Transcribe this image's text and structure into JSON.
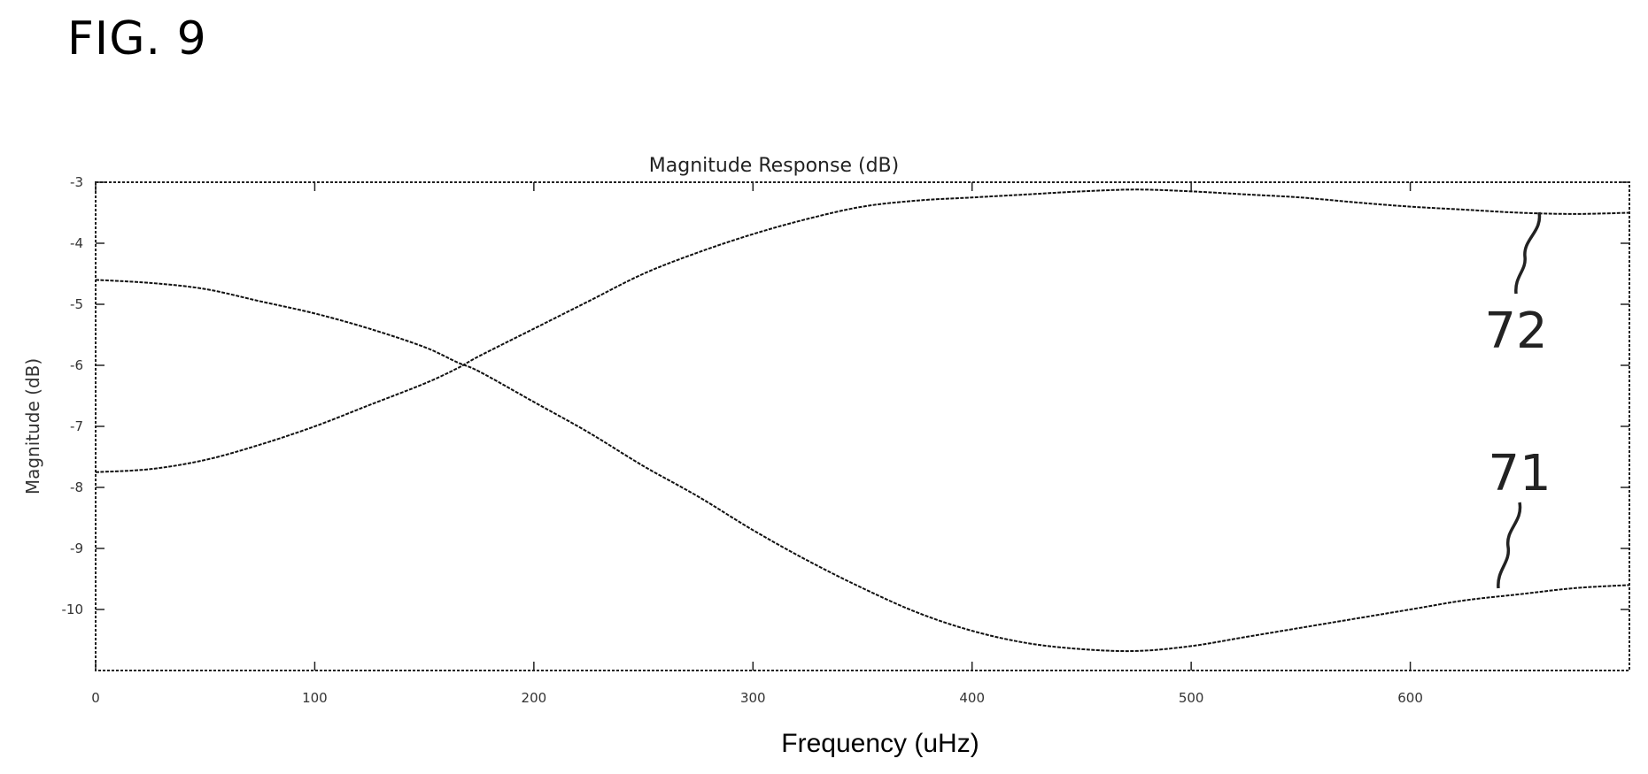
{
  "figure_label": "FIG. 9",
  "chart_data": {
    "type": "line",
    "title": "Magnitude Response (dB)",
    "xlabel": "Frequency (uHz)",
    "ylabel": "Magnitude (dB)",
    "xlim": [
      0,
      700
    ],
    "ylim": [
      -11,
      -3
    ],
    "xticks": [
      0,
      100,
      200,
      300,
      400,
      500,
      600
    ],
    "xtick_labels": [
      "0",
      "100",
      "200",
      "300",
      "400",
      "500",
      "600"
    ],
    "yticks": [
      -3,
      -4,
      -5,
      -6,
      -7,
      -8,
      -9,
      -10
    ],
    "ytick_labels": [
      "-3",
      "-4",
      "-5",
      "-6",
      "-7",
      "-8",
      "-9",
      "-10"
    ],
    "grid": false,
    "series": [
      {
        "name": "71",
        "x": [
          0,
          25,
          50,
          75,
          100,
          125,
          150,
          165,
          175,
          200,
          225,
          250,
          275,
          300,
          325,
          350,
          375,
          400,
          425,
          450,
          475,
          500,
          525,
          550,
          575,
          600,
          625,
          650,
          675,
          700
        ],
        "y": [
          -4.6,
          -4.65,
          -4.75,
          -4.95,
          -5.15,
          -5.4,
          -5.7,
          -5.95,
          -6.1,
          -6.6,
          -7.1,
          -7.65,
          -8.15,
          -8.7,
          -9.2,
          -9.65,
          -10.05,
          -10.35,
          -10.55,
          -10.65,
          -10.68,
          -10.6,
          -10.45,
          -10.3,
          -10.15,
          -10.0,
          -9.85,
          -9.75,
          -9.65,
          -9.6
        ]
      },
      {
        "name": "72",
        "x": [
          0,
          25,
          50,
          75,
          100,
          125,
          150,
          165,
          175,
          200,
          225,
          250,
          275,
          300,
          325,
          350,
          375,
          400,
          425,
          450,
          475,
          500,
          525,
          550,
          575,
          600,
          625,
          650,
          675,
          700
        ],
        "y": [
          -7.75,
          -7.7,
          -7.55,
          -7.3,
          -7.0,
          -6.65,
          -6.3,
          -6.05,
          -5.85,
          -5.4,
          -4.95,
          -4.5,
          -4.15,
          -3.85,
          -3.6,
          -3.4,
          -3.3,
          -3.25,
          -3.2,
          -3.15,
          -3.12,
          -3.15,
          -3.2,
          -3.25,
          -3.33,
          -3.4,
          -3.45,
          -3.5,
          -3.52,
          -3.5
        ]
      }
    ],
    "annotations": [
      "72",
      "71"
    ]
  },
  "colors": {
    "line": "#111111",
    "axes": "#222222",
    "background": "#ffffff"
  }
}
